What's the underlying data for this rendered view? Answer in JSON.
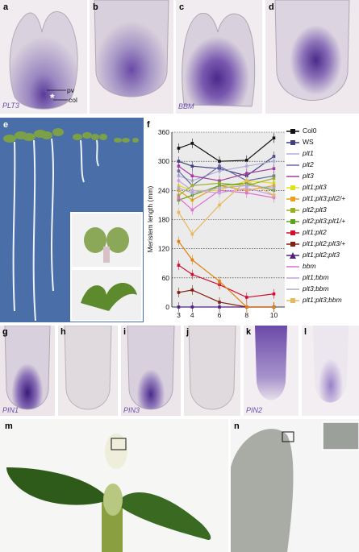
{
  "panel_labels": {
    "a": "a",
    "b": "b",
    "c": "c",
    "d": "d",
    "e": "e",
    "f": "f",
    "g": "g",
    "h": "h",
    "i": "i",
    "j": "j",
    "k": "k",
    "l": "l",
    "m": "m",
    "n": "n"
  },
  "gene_labels": {
    "a": "PLT3",
    "c": "BBM",
    "g": "PIN1",
    "i": "PIN3",
    "k": "PIN2"
  },
  "annotations": {
    "pv": "pv",
    "col": "col",
    "star": "*"
  },
  "colors": {
    "stain": "#5a3a9a",
    "tissue": "#d8d2d8",
    "background_a": "#f3eff3",
    "seedling_bg": "#4a6fa8"
  },
  "chart_data": {
    "type": "line",
    "ylabel": "Meristem length (mm)",
    "x": [
      3,
      4,
      6,
      8,
      10
    ],
    "xticks": [
      "3",
      "4",
      "6",
      "8",
      "10"
    ],
    "ylim": [
      0,
      360
    ],
    "yticks": [
      "0",
      "60",
      "120",
      "180",
      "240",
      "300",
      "360"
    ],
    "grid": "dotted horizontal",
    "legend_position": "right",
    "series": [
      {
        "name": "Col0",
        "italic": false,
        "color": "#111111",
        "marker": "square",
        "values": [
          327,
          337,
          300,
          302,
          348
        ]
      },
      {
        "name": "WS",
        "italic": false,
        "color": "#404080",
        "marker": "square",
        "values": [
          300,
          290,
          285,
          270,
          310
        ]
      },
      {
        "name": "plt1",
        "italic": true,
        "color": "#b0b0d8",
        "marker": "dash",
        "values": [
          270,
          260,
          280,
          290,
          300
        ]
      },
      {
        "name": "plt2",
        "italic": true,
        "color": "#6a6aa8",
        "marker": "dash",
        "values": [
          280,
          250,
          290,
          260,
          270
        ]
      },
      {
        "name": "plt3",
        "italic": true,
        "color": "#a03ca0",
        "marker": "dash",
        "values": [
          290,
          270,
          260,
          275,
          285
        ]
      },
      {
        "name": "plt1;plt3",
        "italic": true,
        "color": "#e0e020",
        "marker": "square",
        "values": [
          250,
          240,
          240,
          260,
          255
        ]
      },
      {
        "name": "plt1;plt3;plt2/+",
        "italic": true,
        "color": "#e8a020",
        "marker": "square",
        "values": [
          240,
          220,
          250,
          240,
          250
        ]
      },
      {
        "name": "plt2;plt3",
        "italic": true,
        "color": "#9ab020",
        "marker": "square",
        "values": [
          230,
          250,
          255,
          250,
          265
        ]
      },
      {
        "name": "plt2;plt3;plt1/+",
        "italic": true,
        "color": "#60a020",
        "marker": "square",
        "values": [
          220,
          230,
          250,
          255,
          240
        ]
      },
      {
        "name": "plt1;plt2",
        "italic": true,
        "color": "#d01030",
        "marker": "square",
        "values": [
          86,
          67,
          46,
          20,
          27
        ]
      },
      {
        "name": "plt1;plt2;plt3/+",
        "italic": true,
        "color": "#802010",
        "marker": "square",
        "values": [
          30,
          35,
          10,
          0,
          0
        ]
      },
      {
        "name": "plt1;plt2;plt3",
        "italic": true,
        "color": "#502080",
        "marker": "triangle",
        "values": [
          0,
          0,
          0,
          0,
          0
        ]
      },
      {
        "name": "bbm",
        "italic": true,
        "color": "#e070d0",
        "marker": "dash",
        "values": [
          225,
          200,
          240,
          235,
          225
        ]
      },
      {
        "name": "plt1;bbm",
        "italic": true,
        "color": "#c8a0e0",
        "marker": "dash",
        "values": [
          260,
          240,
          235,
          245,
          230
        ]
      },
      {
        "name": "plt3;bbm",
        "italic": true,
        "color": "#b0a8d0",
        "marker": "dash",
        "values": [
          245,
          235,
          245,
          250,
          245
        ]
      },
      {
        "name": "plt1;plt3;bbm",
        "italic": true,
        "color": "#e8b860",
        "marker": "square",
        "values": [
          195,
          150,
          210,
          260,
          230
        ]
      }
    ],
    "highlighted_series": {
      "name": "plt1;plt3;plt2/+ low",
      "color": "#e08010",
      "values": [
        135,
        97,
        53,
        0,
        0
      ]
    }
  }
}
